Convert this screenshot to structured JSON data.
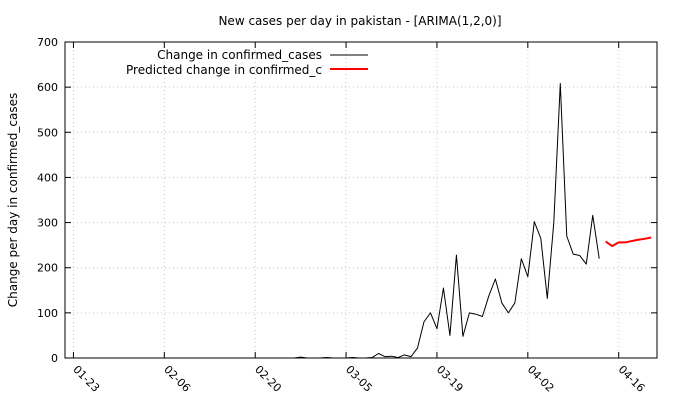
{
  "chart_data": {
    "type": "line",
    "title": "New cases per day in pakistan -  [ARIMA(1,2,0)]",
    "xlabel": "",
    "ylabel": "Change per day in confirmed_cases",
    "ylim": [
      0,
      700
    ],
    "y_ticks": [
      "0",
      "100",
      "200",
      "300",
      "400",
      "500",
      "600",
      "700"
    ],
    "x_ticks": [
      "01-23",
      "02-06",
      "02-20",
      "03-05",
      "03-19",
      "04-02",
      "04-16"
    ],
    "grid": true,
    "legend_position": "top-left",
    "series": [
      {
        "name": "Change in confirmed_cases",
        "color": "#000000",
        "points": [
          [
            "2020-02-26",
            0
          ],
          [
            "2020-02-27",
            2
          ],
          [
            "2020-02-28",
            0
          ],
          [
            "2020-02-29",
            0
          ],
          [
            "2020-03-01",
            0
          ],
          [
            "2020-03-02",
            1
          ],
          [
            "2020-03-03",
            0
          ],
          [
            "2020-03-04",
            0
          ],
          [
            "2020-03-05",
            0
          ],
          [
            "2020-03-06",
            1
          ],
          [
            "2020-03-07",
            0
          ],
          [
            "2020-03-08",
            0
          ],
          [
            "2020-03-09",
            1
          ],
          [
            "2020-03-10",
            10
          ],
          [
            "2020-03-11",
            3
          ],
          [
            "2020-03-12",
            4
          ],
          [
            "2020-03-13",
            1
          ],
          [
            "2020-03-14",
            7
          ],
          [
            "2020-03-15",
            3
          ],
          [
            "2020-03-16",
            22
          ],
          [
            "2020-03-17",
            80
          ],
          [
            "2020-03-18",
            100
          ],
          [
            "2020-03-19",
            65
          ],
          [
            "2020-03-20",
            155
          ],
          [
            "2020-03-21",
            50
          ],
          [
            "2020-03-22",
            228
          ],
          [
            "2020-03-23",
            48
          ],
          [
            "2020-03-24",
            100
          ],
          [
            "2020-03-25",
            97
          ],
          [
            "2020-03-26",
            92
          ],
          [
            "2020-03-27",
            138
          ],
          [
            "2020-03-28",
            175
          ],
          [
            "2020-03-29",
            122
          ],
          [
            "2020-03-30",
            100
          ],
          [
            "2020-03-31",
            122
          ],
          [
            "2020-04-01",
            220
          ],
          [
            "2020-04-02",
            180
          ],
          [
            "2020-04-03",
            302
          ],
          [
            "2020-04-04",
            265
          ],
          [
            "2020-04-05",
            132
          ],
          [
            "2020-04-06",
            300
          ],
          [
            "2020-04-07",
            608
          ],
          [
            "2020-04-08",
            270
          ],
          [
            "2020-04-09",
            230
          ],
          [
            "2020-04-10",
            227
          ],
          [
            "2020-04-11",
            208
          ],
          [
            "2020-04-12",
            316
          ],
          [
            "2020-04-13",
            220
          ]
        ]
      },
      {
        "name": "Predicted change in confirmed_c",
        "color": "#ff0000",
        "points": [
          [
            "2020-04-14",
            258
          ],
          [
            "2020-04-15",
            248
          ],
          [
            "2020-04-16",
            256
          ],
          [
            "2020-04-17",
            256
          ],
          [
            "2020-04-18",
            259
          ],
          [
            "2020-04-19",
            262
          ],
          [
            "2020-04-20",
            264
          ],
          [
            "2020-04-21",
            267
          ]
        ]
      }
    ]
  }
}
